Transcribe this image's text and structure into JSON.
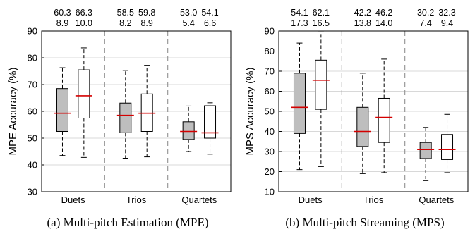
{
  "chart_data": [
    {
      "type": "box",
      "ylabel": "MPE Accuracy (%)",
      "caption": "(a) Multi-pitch Estimation (MPE)",
      "ylim": [
        30,
        90
      ],
      "yticks": [
        30,
        40,
        50,
        60,
        70,
        80,
        90
      ],
      "grid": true,
      "categories": [
        "Duets",
        "Trios",
        "Quartets"
      ],
      "boxes": [
        {
          "category": "Duets",
          "style": "filled",
          "whisker_low": 43.5,
          "q1": 52.5,
          "median": 59.3,
          "q3": 68.5,
          "whisker_high": 76.3,
          "mean_label": "60.3",
          "std_label": "8.9"
        },
        {
          "category": "Duets",
          "style": "open",
          "whisker_low": 42.8,
          "q1": 57.5,
          "median": 65.8,
          "q3": 75.5,
          "whisker_high": 83.7,
          "mean_label": "66.3",
          "std_label": "10.0"
        },
        {
          "category": "Trios",
          "style": "filled",
          "whisker_low": 42.5,
          "q1": 52.0,
          "median": 58.5,
          "q3": 63.1,
          "whisker_high": 75.3,
          "mean_label": "58.5",
          "std_label": "8.2"
        },
        {
          "category": "Trios",
          "style": "open",
          "whisker_low": 43.0,
          "q1": 52.5,
          "median": 59.3,
          "q3": 66.5,
          "whisker_high": 77.2,
          "mean_label": "59.8",
          "std_label": "8.9"
        },
        {
          "category": "Quartets",
          "style": "filled",
          "whisker_low": 45.0,
          "q1": 49.5,
          "median": 52.5,
          "q3": 56.1,
          "whisker_high": 62.0,
          "mean_label": "53.0",
          "std_label": "5.4"
        },
        {
          "category": "Quartets",
          "style": "open",
          "whisker_low": 44.0,
          "q1": 50.0,
          "median": 52.0,
          "q3": 62.1,
          "whisker_high": 63.2,
          "mean_label": "54.1",
          "std_label": "6.6"
        }
      ]
    },
    {
      "type": "box",
      "ylabel": "MPS Accuracy (%)",
      "caption": "(b) Multi-pitch Streaming (MPS)",
      "ylim": [
        10,
        90
      ],
      "yticks": [
        10,
        20,
        30,
        40,
        50,
        60,
        70,
        80,
        90
      ],
      "grid": true,
      "categories": [
        "Duets",
        "Trios",
        "Quartets"
      ],
      "boxes": [
        {
          "category": "Duets",
          "style": "filled",
          "whisker_low": 21.0,
          "q1": 39.0,
          "median": 52.0,
          "q3": 69.0,
          "whisker_high": 84.0,
          "mean_label": "54.1",
          "std_label": "17.3"
        },
        {
          "category": "Duets",
          "style": "open",
          "whisker_low": 22.5,
          "q1": 51.0,
          "median": 65.5,
          "q3": 75.5,
          "whisker_high": 89.5,
          "mean_label": "62.1",
          "std_label": "16.5"
        },
        {
          "category": "Trios",
          "style": "filled",
          "whisker_low": 19.0,
          "q1": 32.5,
          "median": 40.0,
          "q3": 52.0,
          "whisker_high": 69.0,
          "mean_label": "42.2",
          "std_label": "13.8"
        },
        {
          "category": "Trios",
          "style": "open",
          "whisker_low": 19.5,
          "q1": 34.5,
          "median": 47.0,
          "q3": 56.5,
          "whisker_high": 76.0,
          "mean_label": "46.2",
          "std_label": "14.0"
        },
        {
          "category": "Quartets",
          "style": "filled",
          "whisker_low": 15.5,
          "q1": 26.5,
          "median": 31.0,
          "q3": 34.5,
          "whisker_high": 42.0,
          "mean_label": "30.2",
          "std_label": "7.4"
        },
        {
          "category": "Quartets",
          "style": "open",
          "whisker_low": 19.5,
          "q1": 26.0,
          "median": 31.0,
          "q3": 38.5,
          "whisker_high": 48.5,
          "mean_label": "32.3",
          "std_label": "9.4"
        }
      ]
    }
  ],
  "colors": {
    "filled_box": "#bebebe",
    "open_box": "#ffffff",
    "median": "#d40000",
    "grid": "#d8d8d8",
    "separator": "#999999",
    "ink": "#000000"
  }
}
